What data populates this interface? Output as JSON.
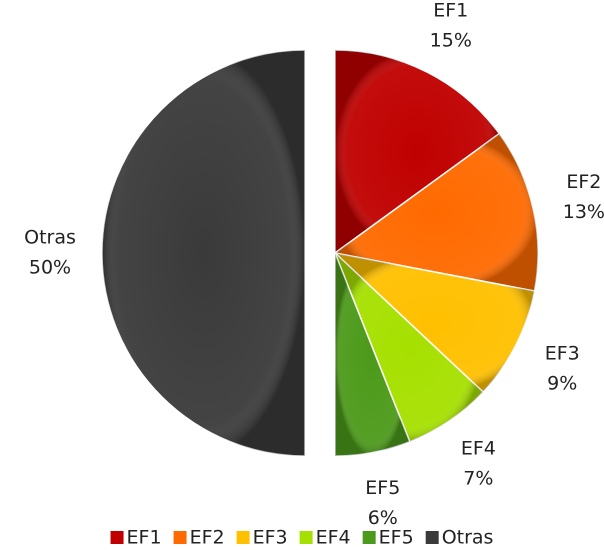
{
  "chart_data": {
    "type": "pie",
    "categories": [
      "EF1",
      "EF2",
      "EF3",
      "EF4",
      "EF5",
      "Otras"
    ],
    "values": [
      15,
      13,
      9,
      7,
      6,
      50
    ],
    "value_labels": [
      "15%",
      "13%",
      "9%",
      "7%",
      "6%",
      "50%"
    ],
    "colors": [
      "#c00000",
      "#ff6a00",
      "#ffc000",
      "#a6e000",
      "#4c9a1a",
      "#3a3a3a"
    ],
    "exploded": [
      false,
      false,
      false,
      false,
      false,
      true
    ],
    "legend": "bottom"
  }
}
